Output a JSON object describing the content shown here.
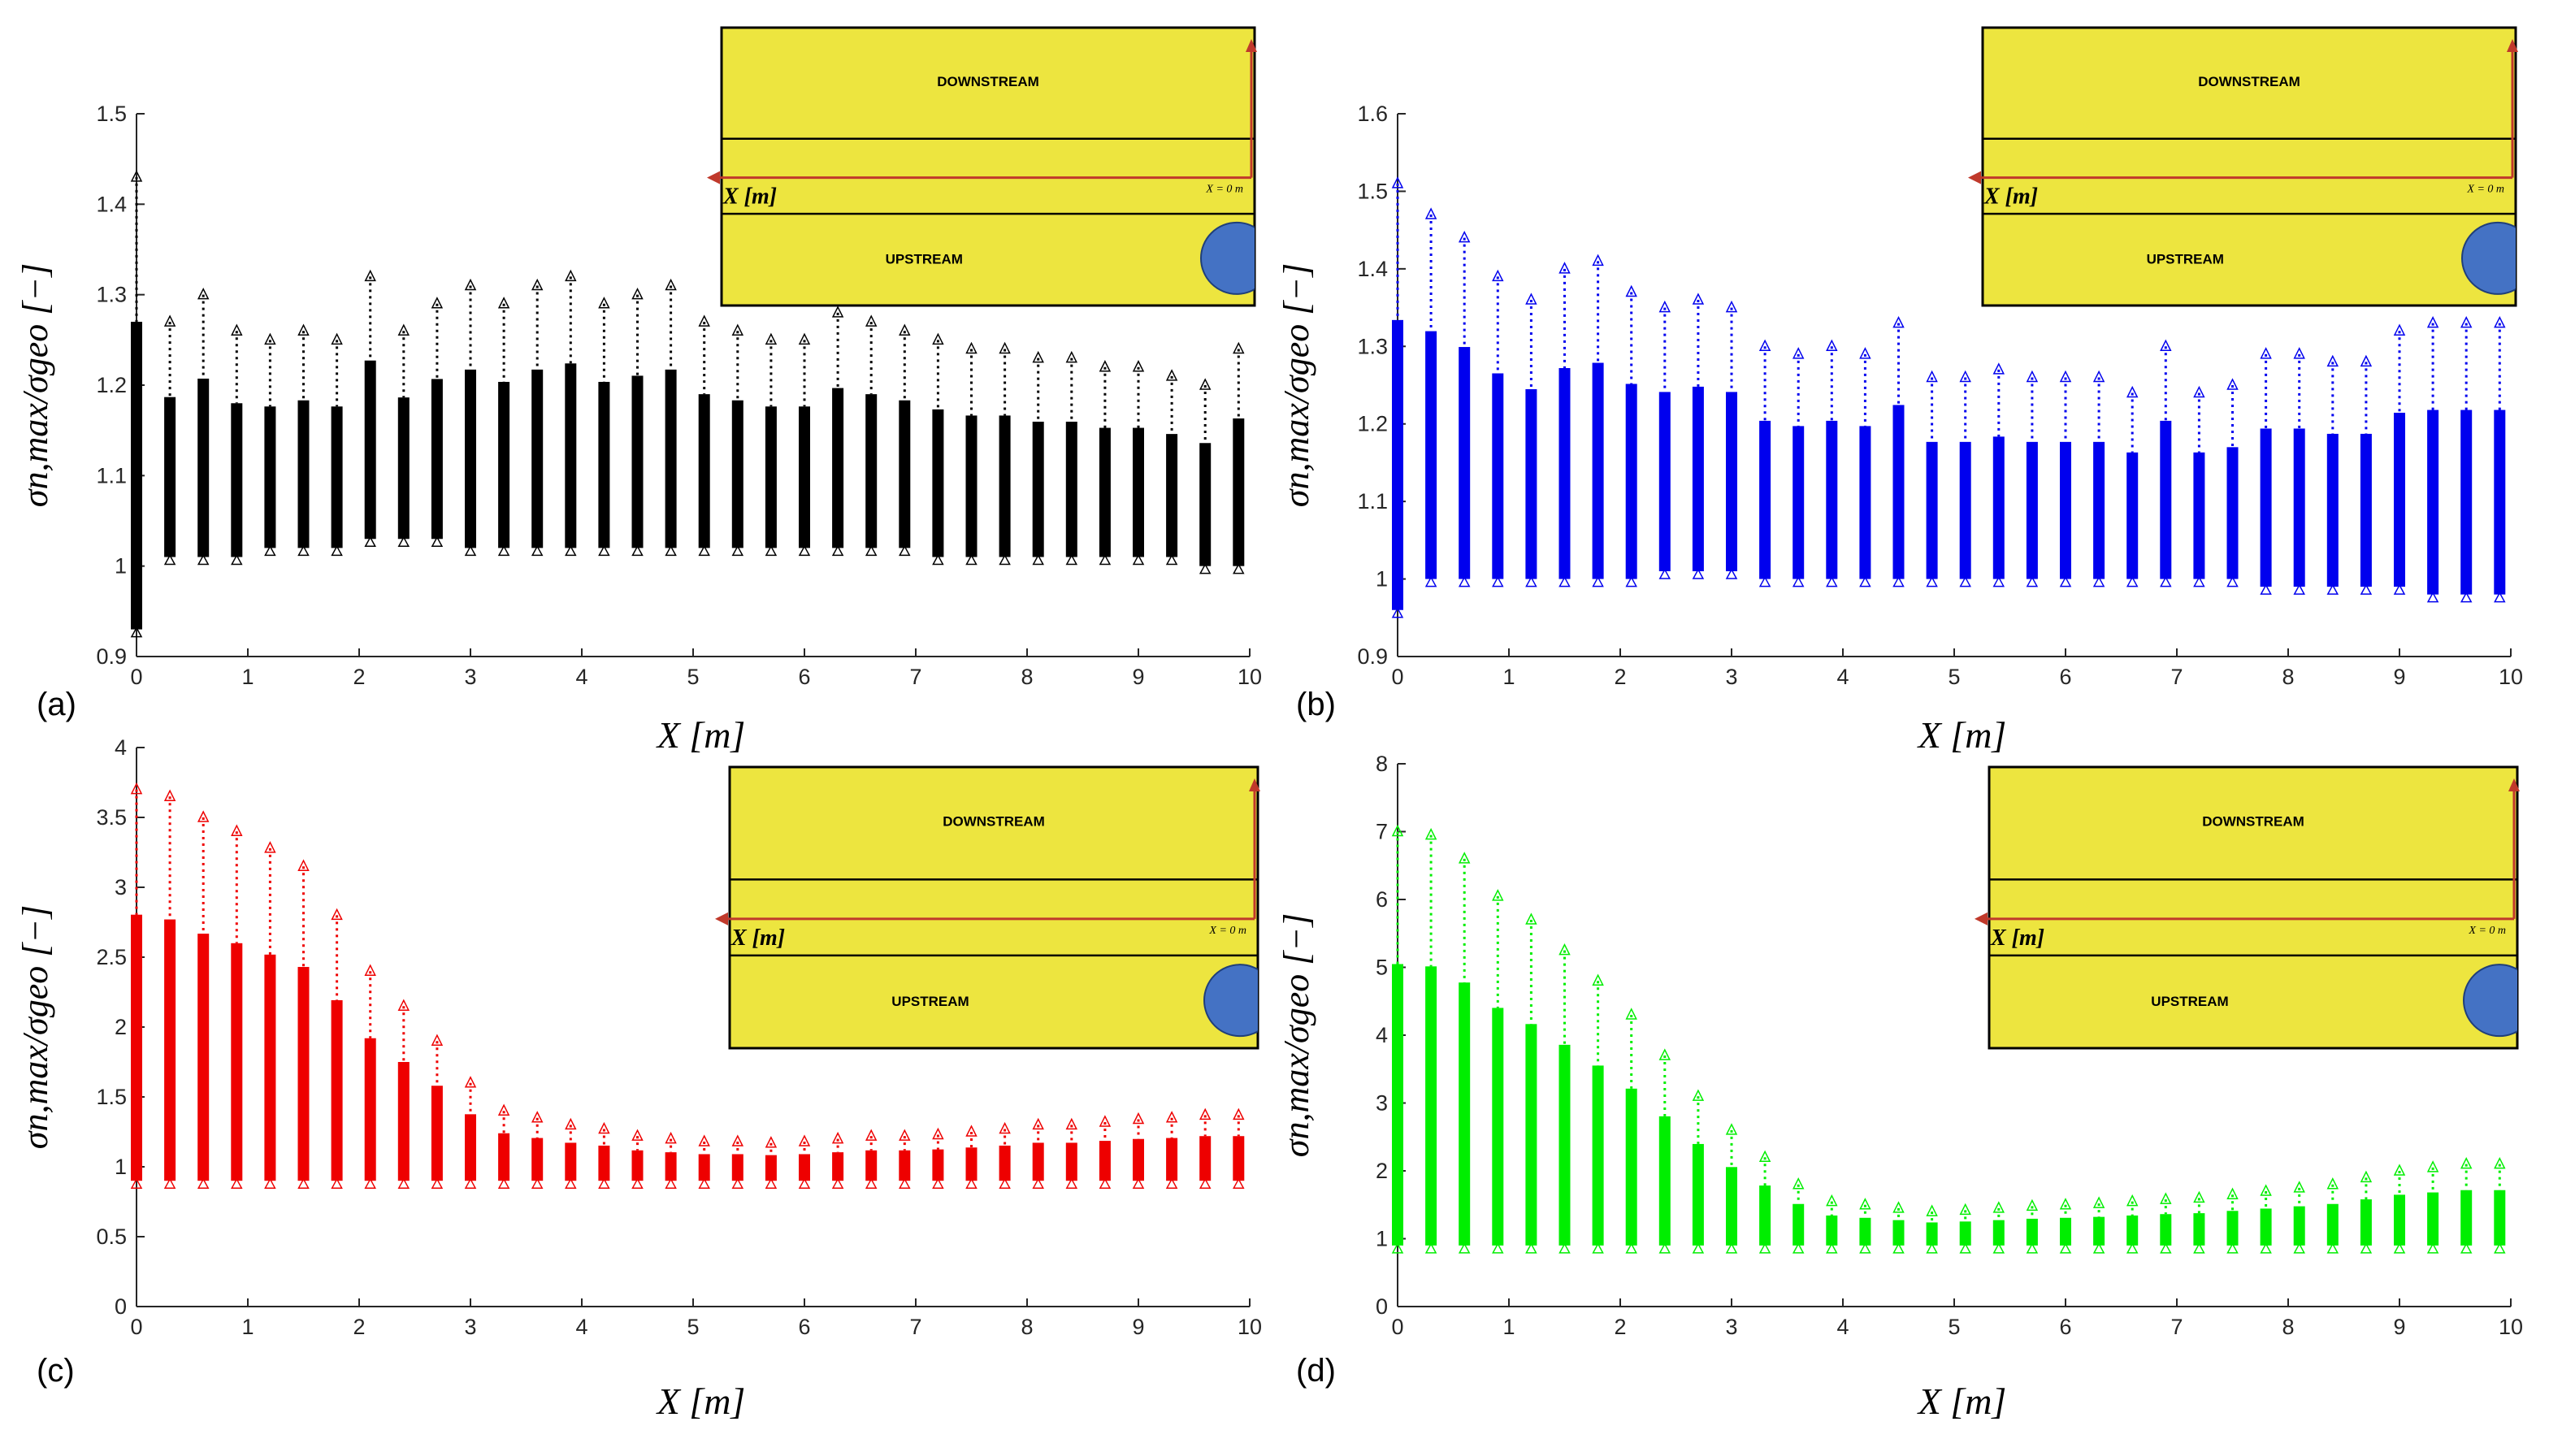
{
  "chart_data": [
    {
      "id": "a",
      "type": "scatter",
      "panel_label": "(a)",
      "marker_color": "#000000",
      "xlabel": "X [m]",
      "ylabel": "σn,max/σgeo [−]",
      "xlim": [
        0,
        10
      ],
      "ylim": [
        0.9,
        1.5
      ],
      "xticks": [
        "0",
        "1",
        "2",
        "3",
        "4",
        "5",
        "6",
        "7",
        "8",
        "9",
        "10"
      ],
      "yticks": [
        "0.9",
        "1",
        "1.1",
        "1.2",
        "1.3",
        "1.4",
        "1.5"
      ],
      "x": [
        0,
        0.3,
        0.6,
        0.9,
        1.2,
        1.5,
        1.8,
        2.1,
        2.4,
        2.7,
        3.0,
        3.3,
        3.6,
        3.9,
        4.2,
        4.5,
        4.8,
        5.1,
        5.4,
        5.7,
        6.0,
        6.3,
        6.6,
        6.9,
        7.2,
        7.5,
        7.8,
        8.1,
        8.4,
        8.7,
        9.0,
        9.3,
        9.6,
        9.9
      ],
      "y_min": [
        0.93,
        1.01,
        1.01,
        1.01,
        1.02,
        1.02,
        1.02,
        1.03,
        1.03,
        1.03,
        1.02,
        1.02,
        1.02,
        1.02,
        1.02,
        1.02,
        1.02,
        1.02,
        1.02,
        1.02,
        1.02,
        1.02,
        1.02,
        1.02,
        1.01,
        1.01,
        1.01,
        1.01,
        1.01,
        1.01,
        1.01,
        1.01,
        1.0,
        1.0
      ],
      "y_max": [
        1.43,
        1.27,
        1.3,
        1.26,
        1.25,
        1.26,
        1.25,
        1.32,
        1.26,
        1.29,
        1.31,
        1.29,
        1.31,
        1.32,
        1.29,
        1.3,
        1.31,
        1.27,
        1.26,
        1.25,
        1.25,
        1.28,
        1.27,
        1.26,
        1.25,
        1.24,
        1.24,
        1.23,
        1.23,
        1.22,
        1.22,
        1.21,
        1.2,
        1.24
      ],
      "inset": {
        "downstream_label": "DOWNSTREAM",
        "upstream_label": "UPSTREAM",
        "axis_label": "X [m]",
        "origin_label": "X = 0 m",
        "fill_color": "#ede53f",
        "arrow_color": "#c0392b",
        "circle_color": "#4472c4"
      }
    },
    {
      "id": "b",
      "type": "scatter",
      "panel_label": "(b)",
      "marker_color": "#0000ee",
      "xlabel": "X [m]",
      "ylabel": "σn,max/σgeo [−]",
      "xlim": [
        0,
        10
      ],
      "ylim": [
        0.9,
        1.6
      ],
      "xticks": [
        "0",
        "1",
        "2",
        "3",
        "4",
        "5",
        "6",
        "7",
        "8",
        "9",
        "10"
      ],
      "yticks": [
        "0.9",
        "1",
        "1.1",
        "1.2",
        "1.3",
        "1.4",
        "1.5",
        "1.6"
      ],
      "x": [
        0,
        0.3,
        0.6,
        0.9,
        1.2,
        1.5,
        1.8,
        2.1,
        2.4,
        2.7,
        3.0,
        3.3,
        3.6,
        3.9,
        4.2,
        4.5,
        4.8,
        5.1,
        5.4,
        5.7,
        6.0,
        6.3,
        6.6,
        6.9,
        7.2,
        7.5,
        7.8,
        8.1,
        8.4,
        8.7,
        9.0,
        9.3,
        9.6,
        9.9
      ],
      "y_min": [
        0.96,
        1.0,
        1.0,
        1.0,
        1.0,
        1.0,
        1.0,
        1.0,
        1.01,
        1.01,
        1.01,
        1.0,
        1.0,
        1.0,
        1.0,
        1.0,
        1.0,
        1.0,
        1.0,
        1.0,
        1.0,
        1.0,
        1.0,
        1.0,
        1.0,
        1.0,
        0.99,
        0.99,
        0.99,
        0.99,
        0.99,
        0.98,
        0.98,
        0.98
      ],
      "y_max": [
        1.51,
        1.47,
        1.44,
        1.39,
        1.36,
        1.4,
        1.41,
        1.37,
        1.35,
        1.36,
        1.35,
        1.3,
        1.29,
        1.3,
        1.29,
        1.33,
        1.26,
        1.26,
        1.27,
        1.26,
        1.26,
        1.26,
        1.24,
        1.3,
        1.24,
        1.25,
        1.29,
        1.29,
        1.28,
        1.28,
        1.32,
        1.33,
        1.33,
        1.33
      ],
      "inset": {
        "downstream_label": "DOWNSTREAM",
        "upstream_label": "UPSTREAM",
        "axis_label": "X [m]",
        "origin_label": "X = 0 m",
        "fill_color": "#ede53f",
        "arrow_color": "#c0392b",
        "circle_color": "#4472c4"
      }
    },
    {
      "id": "c",
      "type": "scatter",
      "panel_label": "(c)",
      "marker_color": "#ee0000",
      "xlabel": "X [m]",
      "ylabel": "σn,max/σgeo [−]",
      "xlim": [
        0,
        10
      ],
      "ylim": [
        0,
        4
      ],
      "xticks": [
        "0",
        "1",
        "2",
        "3",
        "4",
        "5",
        "6",
        "7",
        "8",
        "9",
        "10"
      ],
      "yticks": [
        "0",
        "0.5",
        "1",
        "1.5",
        "2",
        "2.5",
        "3",
        "3.5",
        "4"
      ],
      "x": [
        0,
        0.3,
        0.6,
        0.9,
        1.2,
        1.5,
        1.8,
        2.1,
        2.4,
        2.7,
        3.0,
        3.3,
        3.6,
        3.9,
        4.2,
        4.5,
        4.8,
        5.1,
        5.4,
        5.7,
        6.0,
        6.3,
        6.6,
        6.9,
        7.2,
        7.5,
        7.8,
        8.1,
        8.4,
        8.7,
        9.0,
        9.3,
        9.6,
        9.9
      ],
      "y_min": [
        0.9,
        0.9,
        0.9,
        0.9,
        0.9,
        0.9,
        0.9,
        0.9,
        0.9,
        0.9,
        0.9,
        0.9,
        0.9,
        0.9,
        0.9,
        0.9,
        0.9,
        0.9,
        0.9,
        0.9,
        0.9,
        0.9,
        0.9,
        0.9,
        0.9,
        0.9,
        0.9,
        0.9,
        0.9,
        0.9,
        0.9,
        0.9,
        0.9,
        0.9
      ],
      "y_max": [
        3.7,
        3.65,
        3.5,
        3.4,
        3.28,
        3.15,
        2.8,
        2.4,
        2.15,
        1.9,
        1.6,
        1.4,
        1.35,
        1.3,
        1.27,
        1.22,
        1.2,
        1.18,
        1.18,
        1.17,
        1.18,
        1.2,
        1.22,
        1.22,
        1.23,
        1.25,
        1.27,
        1.3,
        1.3,
        1.32,
        1.34,
        1.35,
        1.37,
        1.37
      ]
    },
    {
      "id": "d",
      "type": "scatter",
      "panel_label": "(d)",
      "marker_color": "#00ee00",
      "xlabel": "X [m]",
      "ylabel": "σn,max/σgeo [−]",
      "xlim": [
        0,
        10
      ],
      "ylim": [
        0,
        8
      ],
      "xticks": [
        "0",
        "1",
        "2",
        "3",
        "4",
        "5",
        "6",
        "7",
        "8",
        "9",
        "10"
      ],
      "yticks": [
        "0",
        "1",
        "2",
        "3",
        "4",
        "5",
        "6",
        "7",
        "8"
      ],
      "x": [
        0,
        0.3,
        0.6,
        0.9,
        1.2,
        1.5,
        1.8,
        2.1,
        2.4,
        2.7,
        3.0,
        3.3,
        3.6,
        3.9,
        4.2,
        4.5,
        4.8,
        5.1,
        5.4,
        5.7,
        6.0,
        6.3,
        6.6,
        6.9,
        7.2,
        7.5,
        7.8,
        8.1,
        8.4,
        8.7,
        9.0,
        9.3,
        9.6,
        9.9
      ],
      "y_min": [
        0.9,
        0.9,
        0.9,
        0.9,
        0.9,
        0.9,
        0.9,
        0.9,
        0.9,
        0.9,
        0.9,
        0.9,
        0.9,
        0.9,
        0.9,
        0.9,
        0.9,
        0.9,
        0.9,
        0.9,
        0.9,
        0.9,
        0.9,
        0.9,
        0.9,
        0.9,
        0.9,
        0.9,
        0.9,
        0.9,
        0.9,
        0.9,
        0.9,
        0.9
      ],
      "y_max": [
        7.0,
        6.95,
        6.6,
        6.05,
        5.7,
        5.25,
        4.8,
        4.3,
        3.7,
        3.1,
        2.6,
        2.2,
        1.8,
        1.55,
        1.5,
        1.45,
        1.4,
        1.42,
        1.45,
        1.48,
        1.5,
        1.52,
        1.55,
        1.58,
        1.6,
        1.65,
        1.7,
        1.75,
        1.8,
        1.9,
        2.0,
        2.05,
        2.1,
        2.1
      ],
      "inset": {
        "downstream_label": "DOWNSTREAM",
        "upstream_label": "UPSTREAM",
        "axis_label": "X [m]",
        "origin_label": "X = 0 m",
        "fill_color": "#ede53f",
        "arrow_color": "#c0392b",
        "circle_color": "#4472c4"
      }
    }
  ],
  "inset_c": {
    "downstream_label": "DOWNSTREAM",
    "upstream_label": "UPSTREAM",
    "axis_label": "X [m]",
    "origin_label": "X = 0 m",
    "fill_color": "#ede53f",
    "arrow_color": "#c0392b",
    "circle_color": "#4472c4"
  }
}
